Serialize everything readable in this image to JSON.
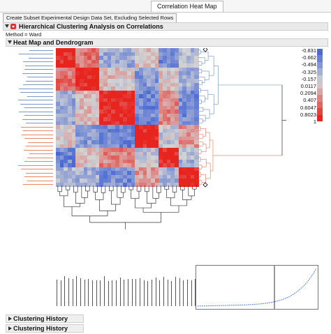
{
  "tab": {
    "label": "Correlation Heat Map"
  },
  "toolbar": {
    "subset_button": "Create Subset Experimental Design Data Set, Excluding Selected Rows"
  },
  "report": {
    "title": "Hierarchical Clustering Analysis on Correlations",
    "method": "Method = Ward",
    "heatmap_section": "Heat Map and Dendrogram",
    "history_1": "Clustering History",
    "history_2": "Clustering History"
  },
  "colors": {
    "blue": "#2e55d4",
    "red": "#e8241f",
    "mid": "#d3d3d3",
    "dendro_blue": "#7a9ac6",
    "dendro_red": "#e8866a",
    "dendro_black": "#333333",
    "curve": "#4f83e8"
  },
  "legend": {
    "ticks": [
      "-0.831",
      "-0.662",
      "-0.494",
      "-0.325",
      "-0.157",
      "0.0117",
      "0.2094",
      "0.407",
      "0.6047",
      "0.8023",
      "1"
    ]
  },
  "icons": {
    "expand": "triangle-down-icon",
    "collapse": "triangle-right-icon",
    "menu": "red-triangle-menu-icon",
    "marker": "diamond-marker-icon"
  }
}
